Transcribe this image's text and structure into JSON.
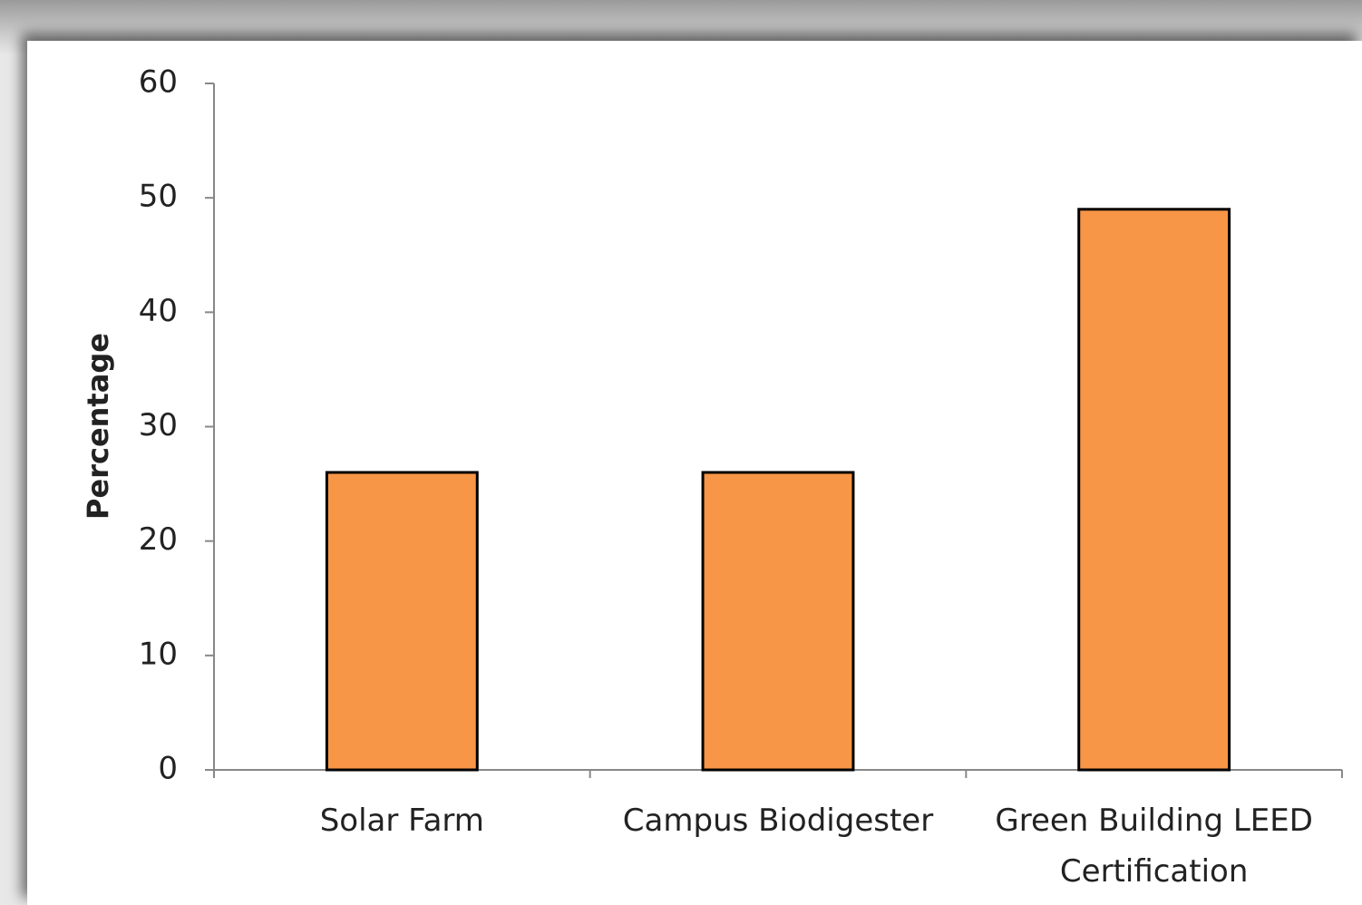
{
  "chart_data": {
    "type": "bar",
    "ylabel": "Percentage",
    "categories": [
      "Solar Farm",
      "Campus Biodigester",
      "Green Building LEED Certification"
    ],
    "values": [
      26,
      26,
      49
    ],
    "color": "#f79646",
    "ylim": [
      0,
      60
    ],
    "yticks": [
      0,
      10,
      20,
      30,
      40,
      50,
      60
    ],
    "grid": false
  }
}
